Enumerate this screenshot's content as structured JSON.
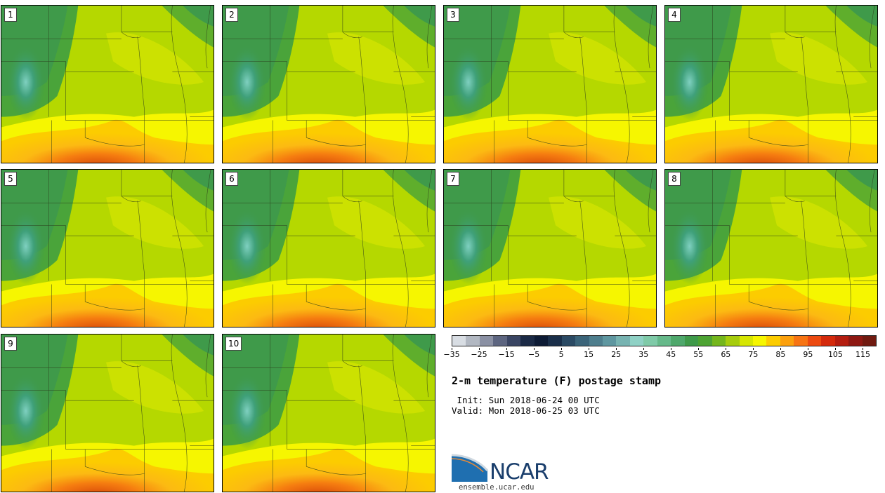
{
  "members": [
    {
      "label": "1"
    },
    {
      "label": "2"
    },
    {
      "label": "3"
    },
    {
      "label": "4"
    },
    {
      "label": "5"
    },
    {
      "label": "6"
    },
    {
      "label": "7"
    },
    {
      "label": "8"
    },
    {
      "label": "9"
    },
    {
      "label": "10"
    }
  ],
  "colorbar": {
    "colors": [
      "#d8dde3",
      "#b2b8c2",
      "#8a90a3",
      "#5d6580",
      "#3a4563",
      "#1b2a46",
      "#0d1b35",
      "#1a2f4a",
      "#2b4a64",
      "#3b6479",
      "#4e7e8d",
      "#5f97a0",
      "#77b3b1",
      "#8fd1c5",
      "#7fcaa8",
      "#66b98a",
      "#4fa86c",
      "#3f9a4a",
      "#4da333",
      "#74b61c",
      "#a6cc0d",
      "#d6e602",
      "#f6f600",
      "#fccc00",
      "#fba00d",
      "#f77413",
      "#ec4a10",
      "#d42a0c",
      "#b41d10",
      "#8e1812",
      "#701a10"
    ],
    "tick_labels": [
      "−35",
      "−25",
      "−15",
      "−5",
      "5",
      "15",
      "25",
      "35",
      "45",
      "55",
      "65",
      "75",
      "85",
      "95",
      "105",
      "115"
    ],
    "tick_values": [
      -35,
      -25,
      -15,
      -5,
      5,
      15,
      25,
      35,
      45,
      55,
      65,
      75,
      85,
      95,
      105,
      115
    ],
    "range": [
      -35,
      120
    ]
  },
  "title": "2-m temperature (F) postage stamp",
  "init": " Init: Sun 2018-06-24 00 UTC",
  "valid": "Valid: Mon 2018-06-25 03 UTC",
  "logo_text": "NCAR",
  "site": "ensemble.ucar.edu"
}
